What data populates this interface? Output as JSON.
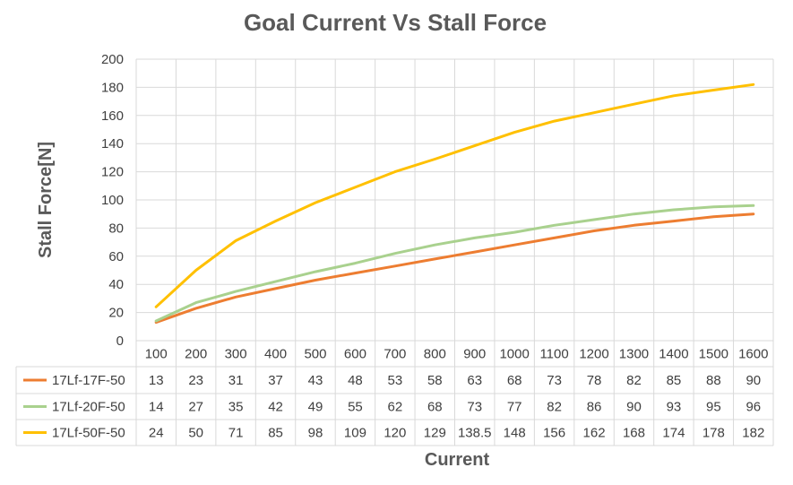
{
  "chart_data": {
    "type": "line",
    "title": "Goal Current Vs Stall Force",
    "xlabel": "Current",
    "ylabel": "Stall Force[N]",
    "ylim": [
      0,
      200
    ],
    "yticks": [
      0,
      20,
      40,
      60,
      80,
      100,
      120,
      140,
      160,
      180,
      200
    ],
    "grid": true,
    "legend": "data-table",
    "categories": [
      "100",
      "200",
      "300",
      "400",
      "500",
      "600",
      "700",
      "800",
      "900",
      "1000",
      "1100",
      "1200",
      "1300",
      "1400",
      "1500",
      "1600"
    ],
    "series": [
      {
        "name": "17Lf-17F-50",
        "color": "#ED7D31",
        "values": [
          13,
          23,
          31,
          37,
          43,
          48,
          53,
          58,
          63,
          68,
          73,
          78,
          82,
          85,
          88,
          90
        ],
        "labels": [
          "13",
          "23",
          "31",
          "37",
          "43",
          "48",
          "53",
          "58",
          "63",
          "68",
          "73",
          "78",
          "82",
          "85",
          "88",
          "90"
        ]
      },
      {
        "name": "17Lf-20F-50",
        "color": "#A9D18E",
        "values": [
          14,
          27,
          35,
          42,
          49,
          55,
          62,
          68,
          73,
          77,
          82,
          86,
          90,
          93,
          95,
          96
        ],
        "labels": [
          "14",
          "27",
          "35",
          "42",
          "49",
          "55",
          "62",
          "68",
          "73",
          "77",
          "82",
          "86",
          "90",
          "93",
          "95",
          "96"
        ]
      },
      {
        "name": "17Lf-50F-50",
        "color": "#FFC000",
        "values": [
          24,
          50,
          71,
          85,
          98,
          109,
          120,
          129,
          138.5,
          148,
          156,
          162,
          168,
          174,
          178,
          182
        ],
        "labels": [
          "24",
          "50",
          "71",
          "85",
          "98",
          "109",
          "120",
          "129",
          "138.5",
          "148",
          "156",
          "162",
          "168",
          "174",
          "178",
          "182"
        ]
      }
    ]
  }
}
